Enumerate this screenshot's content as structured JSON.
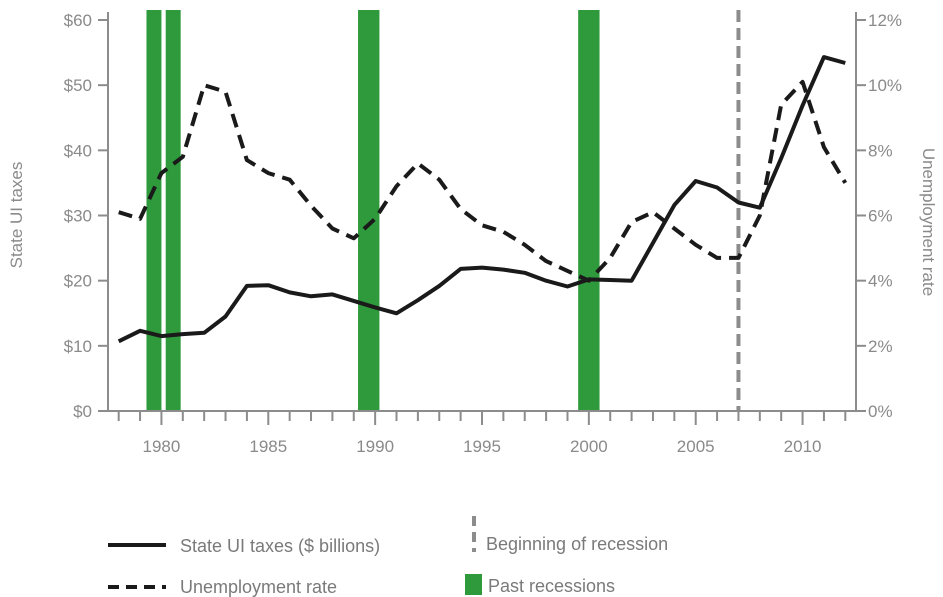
{
  "chart_data": {
    "type": "line",
    "x_range": [
      1977.5,
      2012.5
    ],
    "x_ticks": [
      1980,
      1985,
      1990,
      1995,
      2000,
      2005,
      2010
    ],
    "x_tick_labels": [
      "1980",
      "1985",
      "1990",
      "1995",
      "2000",
      "2005",
      "2010"
    ],
    "y_left": {
      "label": "State UI taxes",
      "range": [
        0,
        60
      ],
      "ticks": [
        0,
        10,
        20,
        30,
        40,
        50,
        60
      ],
      "tick_labels": [
        "$0",
        "$10",
        "$20",
        "$30",
        "$40",
        "$50",
        "$60"
      ]
    },
    "y_right": {
      "label": "Unemployment rate",
      "range": [
        0,
        12
      ],
      "ticks": [
        0,
        2,
        4,
        6,
        8,
        10,
        12
      ],
      "tick_labels": [
        "0%",
        "2%",
        "4%",
        "6%",
        "8%",
        "10%",
        "12%"
      ]
    },
    "series": [
      {
        "name": "State UI taxes ($ billions)",
        "axis": "left",
        "style": "solid",
        "color": "#1a1a1a",
        "x": [
          1978,
          1979,
          1980,
          1981,
          1982,
          1983,
          1984,
          1985,
          1986,
          1987,
          1988,
          1989,
          1990,
          1991,
          1992,
          1993,
          1994,
          1995,
          1996,
          1997,
          1998,
          1999,
          2000,
          2001,
          2002,
          2003,
          2004,
          2005,
          2006,
          2007,
          2008,
          2009,
          2010,
          2011,
          2012
        ],
        "y": [
          10.7,
          12.3,
          11.5,
          11.8,
          12.0,
          14.5,
          19.2,
          19.3,
          18.2,
          17.6,
          17.9,
          16.9,
          15.9,
          15.0,
          17.0,
          19.2,
          21.8,
          22.0,
          21.7,
          21.2,
          20.0,
          19.1,
          20.2,
          20.1,
          20.0,
          25.8,
          31.6,
          35.3,
          34.3,
          32.0,
          31.2,
          38.8,
          46.9,
          54.3,
          53.4
        ]
      },
      {
        "name": "Unemployment rate",
        "axis": "right",
        "style": "dashed",
        "color": "#1a1a1a",
        "x": [
          1978,
          1979,
          1980,
          1981,
          1982,
          1983,
          1984,
          1985,
          1986,
          1987,
          1988,
          1989,
          1990,
          1991,
          1992,
          1993,
          1994,
          1995,
          1996,
          1997,
          1998,
          1999,
          2000,
          2001,
          2002,
          2003,
          2004,
          2005,
          2006,
          2007,
          2008,
          2009,
          2010,
          2011,
          2012
        ],
        "y": [
          6.1,
          5.9,
          7.3,
          7.8,
          10.0,
          9.8,
          7.7,
          7.3,
          7.1,
          6.3,
          5.6,
          5.3,
          5.9,
          6.9,
          7.6,
          7.1,
          6.2,
          5.7,
          5.5,
          5.1,
          4.6,
          4.3,
          4.0,
          4.7,
          5.8,
          6.1,
          5.6,
          5.1,
          4.7,
          4.7,
          6.0,
          9.4,
          10.1,
          8.1,
          7.0
        ]
      }
    ],
    "recessions": [
      {
        "start": 1979.3,
        "end": 1980.0
      },
      {
        "start": 1980.2,
        "end": 1980.9
      },
      {
        "start": 1989.2,
        "end": 1990.2
      },
      {
        "start": 1999.5,
        "end": 2000.5
      }
    ],
    "recession_color": "#2e9a3c",
    "recession_start_marker": 2007.0,
    "marker_color": "#8c8c8c",
    "grid": false,
    "legend": {
      "position": "bottom",
      "items": [
        {
          "label": "State UI taxes ($ billions)",
          "kind": "solid-line"
        },
        {
          "label": "Beginning of recession",
          "kind": "dashed-vertical"
        },
        {
          "label": "Unemployment rate",
          "kind": "dashed-line"
        },
        {
          "label": "Past recessions",
          "kind": "green-box"
        }
      ]
    }
  }
}
